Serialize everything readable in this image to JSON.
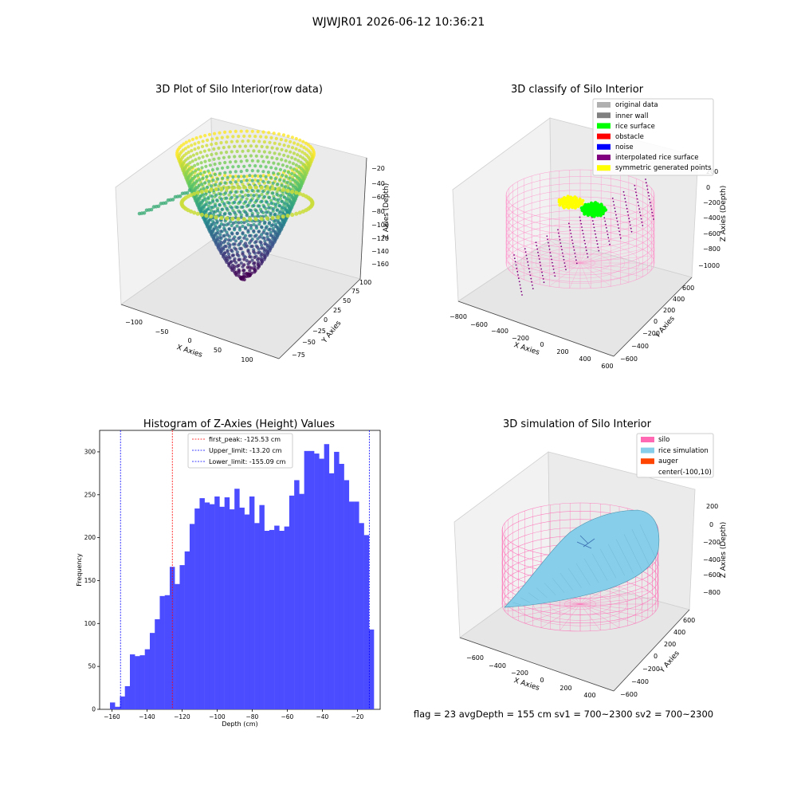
{
  "figure_title": "WJWJR01 2026-06-12 10:36:21",
  "status_line": "flag = 23   avgDepth = 155 cm   sv1 = 700~2300   sv2 = 700~2300",
  "colors": {
    "hist_bar": "#4b4bff",
    "peak_line": "#ff0000",
    "limit_line": "#0000ff",
    "silo": "#ff69b4",
    "rice_simulation": "#87ceeb",
    "auger": "#ff4500",
    "viridis": [
      "#440154",
      "#3b528b",
      "#21918c",
      "#5ec962",
      "#fde725"
    ]
  },
  "chart_data": [
    {
      "id": "raw",
      "type": "scatter3d",
      "title": "3D Plot of Silo Interior(row data)",
      "xlabel": "X Axies",
      "ylabel": "Y Axies",
      "zlabel": "Z Axies (Depth)",
      "x_ticks": [
        "−100",
        "−50",
        "0",
        "50",
        "100"
      ],
      "y_ticks": [
        "−75",
        "−50",
        "−25",
        "0",
        "25",
        "50",
        "75",
        "100"
      ],
      "z_ticks": [
        "−20",
        "−40",
        "−60",
        "−80",
        "−100",
        "−120",
        "−140",
        "−160"
      ],
      "xlim": [
        -125,
        125
      ],
      "ylim": [
        -85,
        105
      ],
      "zlim": [
        -170,
        -15
      ],
      "colormap": "viridis"
    },
    {
      "id": "classify",
      "type": "scatter3d",
      "title": "3D classify of Silo Interior",
      "xlabel": "X Axies",
      "ylabel": "Y Axies",
      "zlabel": "Z Axies (Depth)",
      "x_ticks": [
        "−800",
        "−600",
        "−400",
        "−200",
        "0",
        "200",
        "400",
        "600"
      ],
      "y_ticks": [
        "−600",
        "−400",
        "−200",
        "0",
        "200",
        "400",
        "600"
      ],
      "z_ticks": [
        "200",
        "0",
        "−200",
        "−400",
        "−600",
        "−800",
        "−1000"
      ],
      "legend_position": "top-right",
      "legend": [
        {
          "label": "original data",
          "color": "#b0b0b0"
        },
        {
          "label": "inner wall",
          "color": "#808080"
        },
        {
          "label": "rice surface",
          "color": "#00ff00"
        },
        {
          "label": "obstacle",
          "color": "#ff0000"
        },
        {
          "label": "noise",
          "color": "#0000ff"
        },
        {
          "label": "interpolated rice surface",
          "color": "#800080"
        },
        {
          "label": "symmetric generated points",
          "color": "#ffff00"
        }
      ]
    },
    {
      "id": "histogram",
      "type": "bar",
      "title": "Histogram of Z-Axies (Height) Values",
      "xlabel": "Depth (cm)",
      "ylabel": "Frequency",
      "xlim": [
        -167,
        -7
      ],
      "ylim": [
        0,
        325
      ],
      "x_ticks": [
        -160,
        -140,
        -120,
        -100,
        -80,
        -60,
        -40,
        -20
      ],
      "x_tick_labels": [
        "−160",
        "−140",
        "−120",
        "−100",
        "−80",
        "−60",
        "−40",
        "−20"
      ],
      "y_ticks": [
        0,
        50,
        100,
        150,
        200,
        250,
        300
      ],
      "y_tick_labels": [
        "0",
        "50",
        "100",
        "150",
        "200",
        "250",
        "300"
      ],
      "bin_edges_start": -161.1,
      "bin_width": 2.84,
      "values": [
        8,
        3,
        15,
        27,
        64,
        62,
        63,
        70,
        89,
        105,
        132,
        133,
        166,
        146,
        168,
        184,
        216,
        234,
        246,
        241,
        239,
        248,
        236,
        247,
        233,
        257,
        235,
        227,
        248,
        217,
        238,
        208,
        209,
        214,
        208,
        213,
        249,
        267,
        251,
        301,
        301,
        298,
        292,
        309,
        275,
        300,
        286,
        267,
        242,
        242,
        217,
        203,
        93
      ],
      "legend_position": "top-center",
      "vlines": [
        {
          "name": "first_peak",
          "x": -125.53,
          "label": "first_peak: -125.53 cm",
          "color": "#ff0000"
        },
        {
          "name": "upper_limit",
          "x": -13.2,
          "label": "Upper_limit: -13.20 cm",
          "color": "#0000ff"
        },
        {
          "name": "lower_limit",
          "x": -155.09,
          "label": "Lower_limit: -155.09 cm",
          "color": "#0000ff"
        }
      ]
    },
    {
      "id": "simulation",
      "type": "surface3d",
      "title": "3D simulation of Silo Interior",
      "xlabel": "X Axies",
      "ylabel": "Y Axies",
      "zlabel": "Z Axies (Depth)",
      "x_ticks": [
        "−600",
        "−400",
        "−200",
        "0",
        "200",
        "400"
      ],
      "y_ticks": [
        "−600",
        "−400",
        "−200",
        "0",
        "200",
        "400",
        "600"
      ],
      "z_ticks": [
        "200",
        "0",
        "−200",
        "−400",
        "−600",
        "−800"
      ],
      "legend_position": "top-right",
      "legend": [
        {
          "label": "silo",
          "color": "#ff69b4"
        },
        {
          "label": "rice simulation",
          "color": "#87ceeb"
        },
        {
          "label": "auger",
          "color": "#ff4500"
        },
        {
          "label": "center(-100,10)",
          "color": "#ffffff"
        }
      ]
    }
  ]
}
